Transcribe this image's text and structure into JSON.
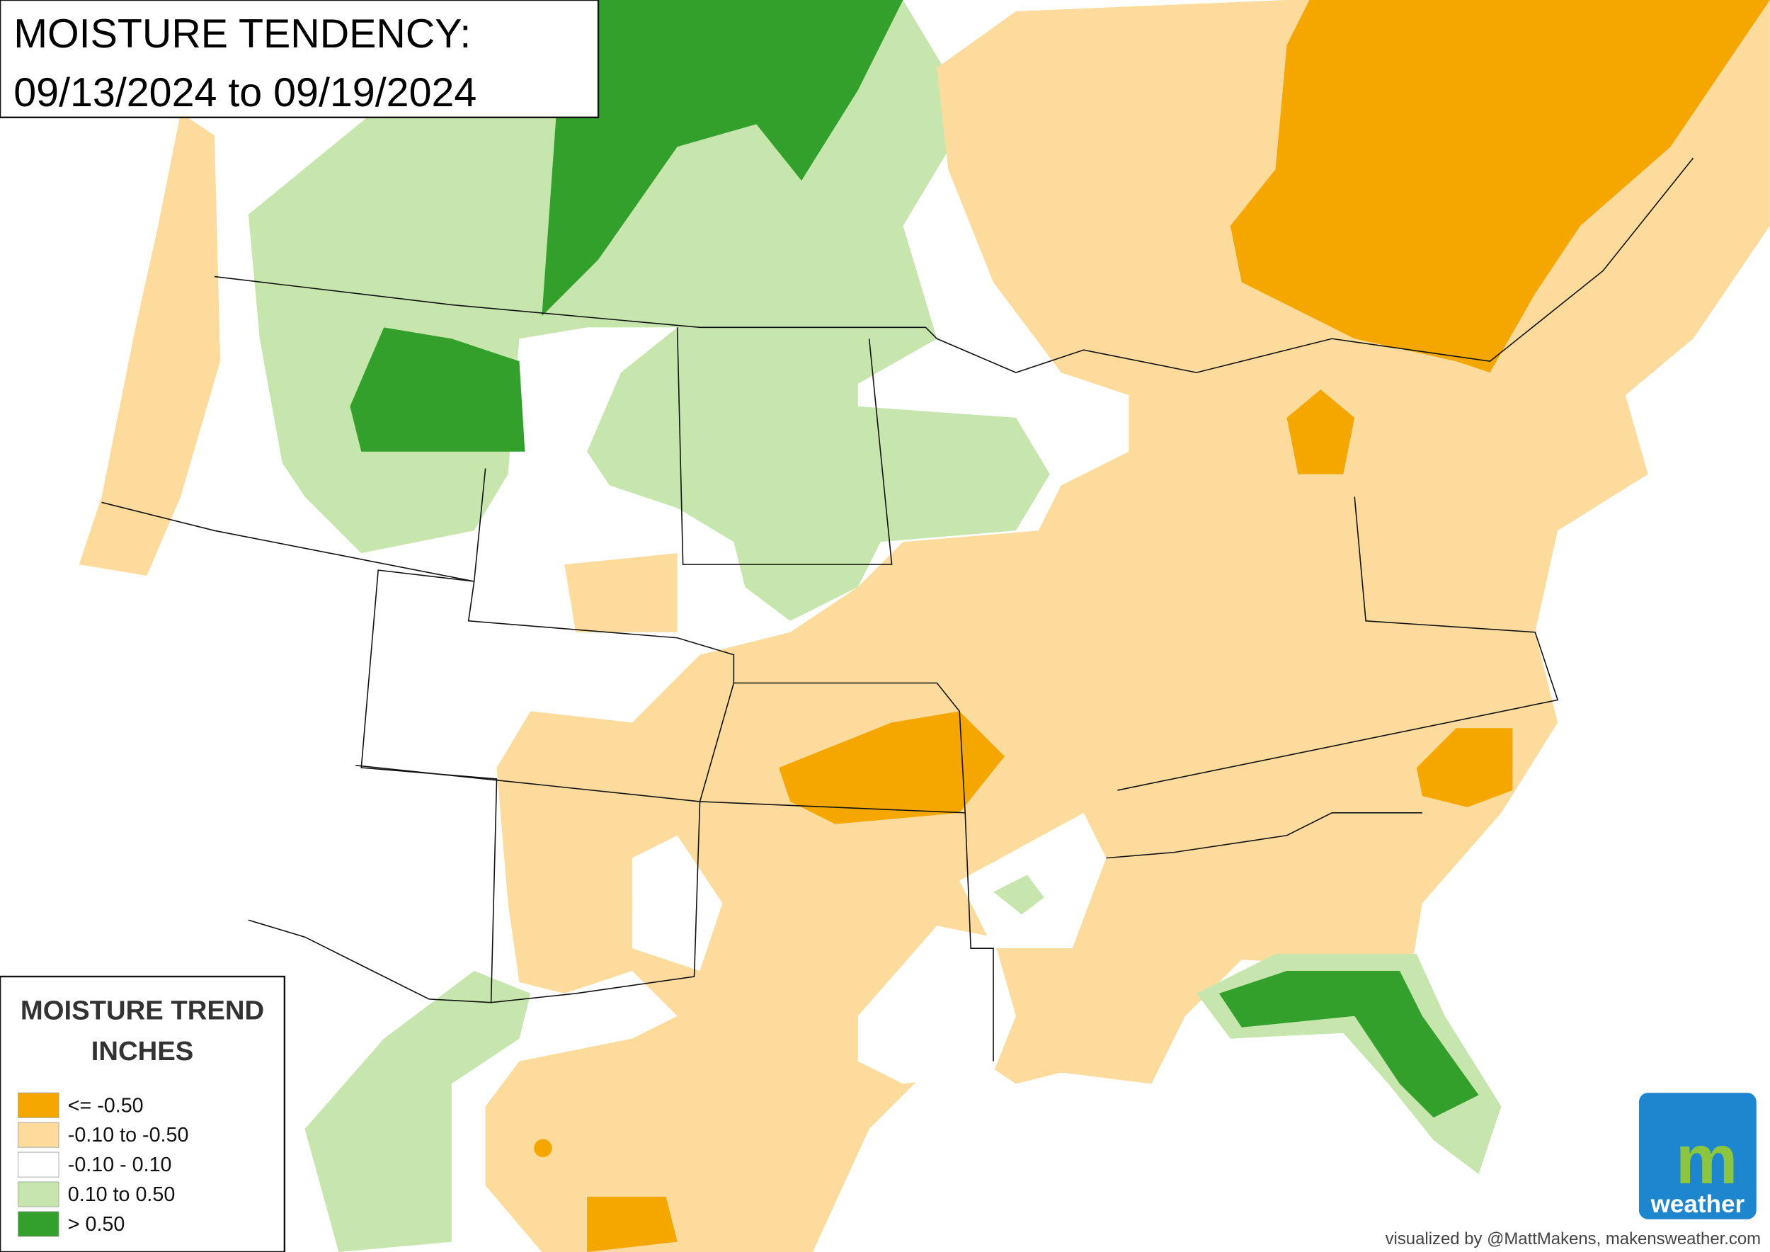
{
  "header": {
    "title_lines": [
      "MOISTURE TENDENCY:",
      "09/13/2024 to 09/19/2024"
    ]
  },
  "legend": {
    "title_lines": [
      "MOISTURE TREND",
      "INCHES"
    ],
    "items": [
      {
        "label": "<= -0.50",
        "color": "#f5a700"
      },
      {
        "label": "-0.10 to -0.50",
        "color": "#fcdb9c"
      },
      {
        "label": "-0.10 - 0.10",
        "color": "#ffffff"
      },
      {
        "label": "0.10 to 0.50",
        "color": "#c6e6ae"
      },
      {
        "label": "> 0.50",
        "color": "#34a02c"
      }
    ]
  },
  "credit": "visualized by @MattMakens, makensweather.com",
  "logo": {
    "letter": "m",
    "text": "weather"
  }
}
